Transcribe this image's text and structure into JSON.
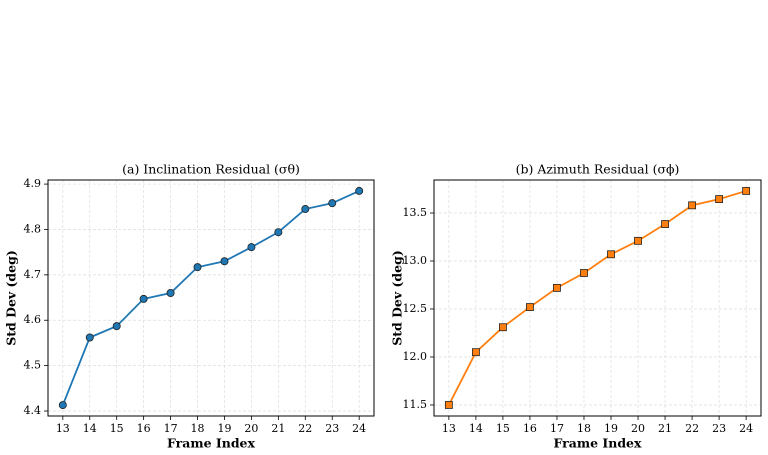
{
  "chart_data": [
    {
      "type": "line",
      "title": "(a) Inclination Residual (σθ)",
      "x_label": "Frame Index",
      "y_label": "Std Dev (deg)",
      "x": [
        13,
        14,
        15,
        16,
        17,
        18,
        19,
        20,
        21,
        22,
        23,
        24
      ],
      "series": [
        {
          "name": "Inclination",
          "color": "#1f77b4",
          "marker": "circle",
          "values": [
            4.413,
            4.562,
            4.587,
            4.647,
            4.66,
            4.717,
            4.73,
            4.761,
            4.794,
            4.845,
            4.858,
            4.885
          ]
        }
      ],
      "xlim": [
        12.45,
        24.55
      ],
      "xticks": [
        13,
        14,
        15,
        16,
        17,
        18,
        19,
        20,
        21,
        22,
        23,
        24
      ],
      "ylim": [
        4.389,
        4.909
      ],
      "yticks": [
        4.4,
        4.5,
        4.6,
        4.7,
        4.8,
        4.9
      ],
      "grid": true
    },
    {
      "type": "line",
      "title": "(b) Azimuth Residual (σϕ)",
      "x_label": "Frame Index",
      "y_label": "Std Dev (deg)",
      "x": [
        13,
        14,
        15,
        16,
        17,
        18,
        19,
        20,
        21,
        22,
        23,
        24
      ],
      "series": [
        {
          "name": "Azimuth",
          "color": "#ff7f0e",
          "marker": "square",
          "values": [
            11.5,
            12.05,
            12.31,
            12.52,
            12.72,
            12.875,
            13.07,
            13.21,
            13.385,
            13.58,
            13.645,
            13.73
          ]
        }
      ],
      "xlim": [
        12.45,
        24.55
      ],
      "xticks": [
        13,
        14,
        15,
        16,
        17,
        18,
        19,
        20,
        21,
        22,
        23,
        24
      ],
      "ylim": [
        11.385,
        13.844
      ],
      "yticks": [
        {
          "value": 11.5,
          "label": "11.5"
        },
        {
          "value": 12,
          "label": "12.0"
        },
        {
          "value": 12.5,
          "label": "12.5"
        },
        {
          "value": 13,
          "label": "13.0"
        },
        {
          "value": 13.5,
          "label": "13.5"
        }
      ],
      "grid": true
    }
  ]
}
